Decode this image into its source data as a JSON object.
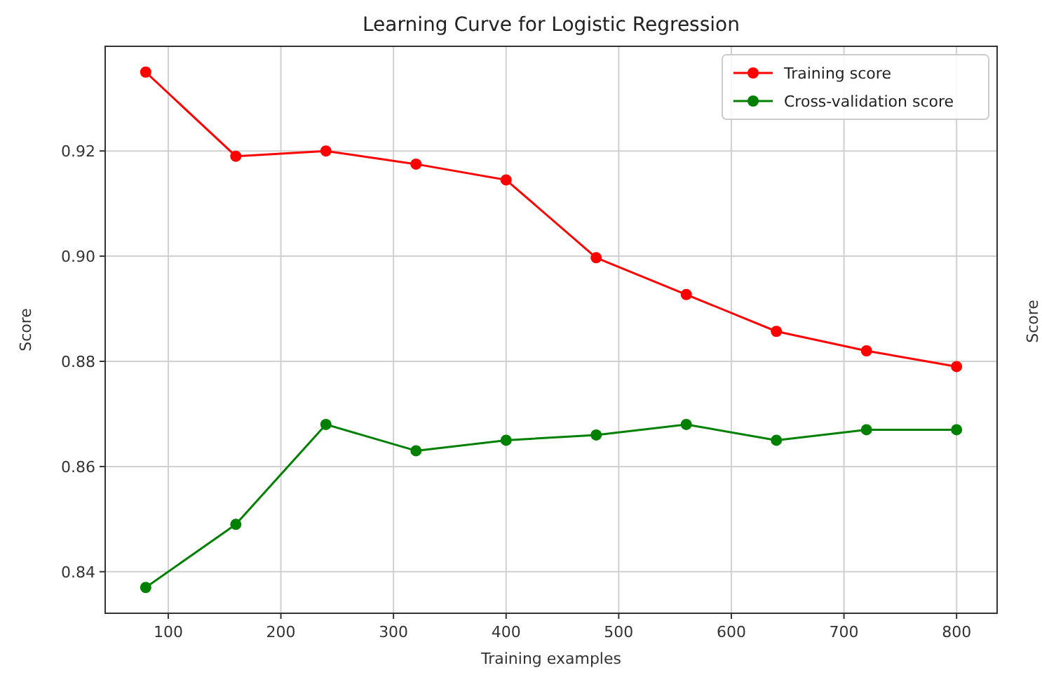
{
  "chart_data": {
    "type": "line",
    "title": "Learning Curve for Logistic Regression",
    "xlabel": "Training examples",
    "ylabel": "Score",
    "x": [
      80,
      160,
      240,
      320,
      400,
      480,
      560,
      640,
      720,
      800
    ],
    "series": [
      {
        "name": "Training score",
        "color": "#ff0000",
        "values": [
          0.935,
          0.919,
          0.92,
          0.9175,
          0.9145,
          0.8997,
          0.8927,
          0.8857,
          0.882,
          0.879
        ]
      },
      {
        "name": "Cross-validation score",
        "color": "#008000",
        "values": [
          0.837,
          0.849,
          0.868,
          0.863,
          0.865,
          0.866,
          0.868,
          0.865,
          0.867,
          0.867
        ]
      }
    ],
    "xlim": [
      44,
      836
    ],
    "xticks": [
      100,
      200,
      300,
      400,
      500,
      600,
      700,
      800
    ],
    "ylim": [
      0.8321,
      0.9399
    ],
    "yticks": [
      {
        "value": 0.84,
        "label": "0.84"
      },
      {
        "value": 0.86,
        "label": "0.86"
      },
      {
        "value": 0.88,
        "label": "0.88"
      },
      {
        "value": 0.9,
        "label": "0.90"
      },
      {
        "value": 0.92,
        "label": "0.92"
      }
    ],
    "grid": true,
    "legend": "top right",
    "marker": "circle",
    "line_style": "solid",
    "annotations": [
      "Score"
    ]
  }
}
